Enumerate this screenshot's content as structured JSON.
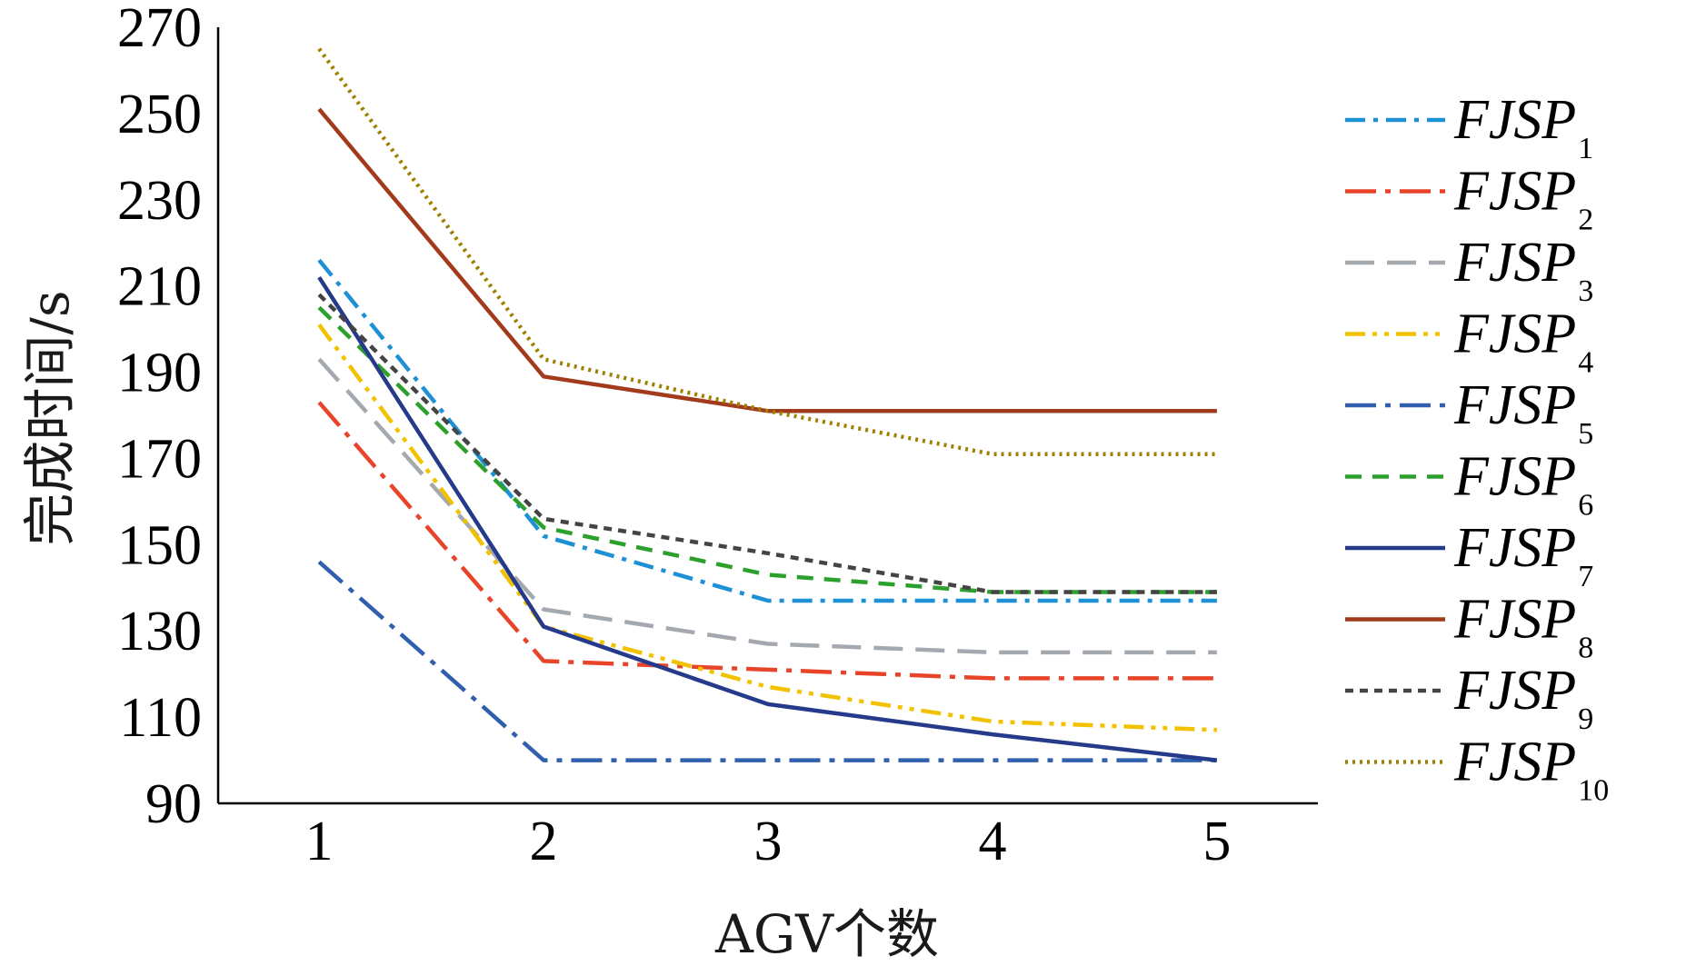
{
  "chart_data": {
    "type": "line",
    "title": "",
    "xlabel": "AGV个数",
    "ylabel": "完成时间/s",
    "x": [
      1,
      2,
      3,
      4,
      5
    ],
    "xticks": [
      "1",
      "2",
      "3",
      "4",
      "5"
    ],
    "yticks": [
      "90",
      "110",
      "130",
      "150",
      "170",
      "190",
      "210",
      "230",
      "250",
      "270"
    ],
    "xlim": [
      0.55,
      5.45
    ],
    "ylim": [
      90,
      270
    ],
    "grid": false,
    "legend_position": "right",
    "series": [
      {
        "name": "FJSP",
        "sub": "1",
        "color": "#1e90d6",
        "dash": "dashdot",
        "values": [
          216,
          152,
          137,
          137,
          137
        ]
      },
      {
        "name": "FJSP",
        "sub": "2",
        "color": "#e8442a",
        "dash": "longdashdot",
        "values": [
          183,
          123,
          121,
          119,
          119
        ]
      },
      {
        "name": "FJSP",
        "sub": "3",
        "color": "#a3a9ae",
        "dash": "longdash",
        "values": [
          193,
          135,
          127,
          125,
          125
        ]
      },
      {
        "name": "FJSP",
        "sub": "4",
        "color": "#f2c200",
        "dash": "dashdotdot",
        "values": [
          201,
          131,
          117,
          109,
          107
        ]
      },
      {
        "name": "FJSP",
        "sub": "5",
        "color": "#2f5fad",
        "dash": "longdashdot",
        "values": [
          146,
          100,
          100,
          100,
          100
        ]
      },
      {
        "name": "FJSP",
        "sub": "6",
        "color": "#2ca02c",
        "dash": "dash",
        "values": [
          205,
          154,
          143,
          139,
          139
        ]
      },
      {
        "name": "FJSP",
        "sub": "7",
        "color": "#253a8a",
        "dash": "solid",
        "values": [
          212,
          131,
          113,
          106,
          100
        ]
      },
      {
        "name": "FJSP",
        "sub": "8",
        "color": "#a23b1c",
        "dash": "solid",
        "values": [
          251,
          189,
          181,
          181,
          181
        ]
      },
      {
        "name": "FJSP",
        "sub": "9",
        "color": "#444444",
        "dash": "shortdash",
        "values": [
          208,
          156,
          148,
          139,
          139
        ]
      },
      {
        "name": "FJSP",
        "sub": "10",
        "color": "#a08000",
        "dash": "dot",
        "values": [
          265,
          193,
          181,
          171,
          171
        ]
      }
    ]
  }
}
